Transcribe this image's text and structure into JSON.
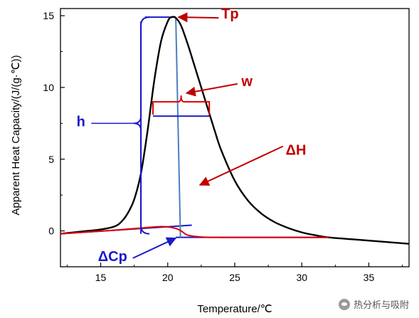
{
  "chart_data": {
    "type": "line",
    "xlabel": "Temperature/℃",
    "ylabel": "Apparent Heat Capacity/(J/(g·℃))",
    "xlim": [
      12,
      38
    ],
    "ylim": [
      -2.5,
      15.5
    ],
    "x_ticks": [
      15,
      20,
      25,
      30,
      35
    ],
    "y_ticks": [
      0,
      5,
      10,
      15
    ],
    "grid": false,
    "series": [
      {
        "color": "#000000",
        "x": [
          12,
          14,
          15,
          16,
          16.5,
          17,
          17.5,
          18,
          18.5,
          19,
          19.5,
          20,
          20.3,
          20.6,
          21,
          21.5,
          22,
          22.5,
          23,
          23.5,
          24,
          25,
          26,
          27,
          28,
          29,
          30,
          31,
          32,
          34,
          36,
          38
        ],
        "y": [
          -0.2,
          0.0,
          0.1,
          0.3,
          0.6,
          1.2,
          2.2,
          4.0,
          7.0,
          10.5,
          13.2,
          14.6,
          14.9,
          14.85,
          14.3,
          13.0,
          11.5,
          10.0,
          8.5,
          7.0,
          5.6,
          3.5,
          2.1,
          1.2,
          0.6,
          0.2,
          -0.1,
          -0.3,
          -0.45,
          -0.6,
          -0.75,
          -0.9
        ]
      },
      {
        "color": "#e00000",
        "x": [
          12,
          16,
          18,
          19.5,
          20.5,
          21.0,
          21.5,
          22.5,
          24,
          27,
          30,
          32
        ],
        "y": [
          -0.2,
          0.05,
          0.2,
          0.3,
          0.2,
          0.0,
          -0.3,
          -0.42,
          -0.45,
          -0.45,
          -0.45,
          -0.45
        ]
      }
    ],
    "annotations": {
      "tp": {
        "label": "Tp",
        "target": [
          20.6,
          14.9
        ],
        "label_at": [
          24.0,
          14.8
        ]
      },
      "w": {
        "label": "w",
        "bracket_x": [
          18.9,
          23.1
        ],
        "bracket_y": 8.0,
        "label_at": [
          25.5,
          10.1
        ]
      },
      "delta_h": {
        "label": "ΔH",
        "target": [
          22.2,
          3.2
        ],
        "label_at": [
          28.8,
          5.3
        ]
      },
      "h": {
        "label": "h",
        "bracket_y": [
          -0.45,
          14.9
        ],
        "bracket_x": 18.0,
        "label_at": [
          13.2,
          7.3
        ]
      },
      "delta_cp": {
        "label": "ΔCp",
        "target": [
          20.7,
          -0.35
        ],
        "label_at": [
          14.8,
          -2.1
        ]
      }
    }
  },
  "watermark": {
    "text": "热分析与吸附",
    "icon": "wechat-icon"
  }
}
